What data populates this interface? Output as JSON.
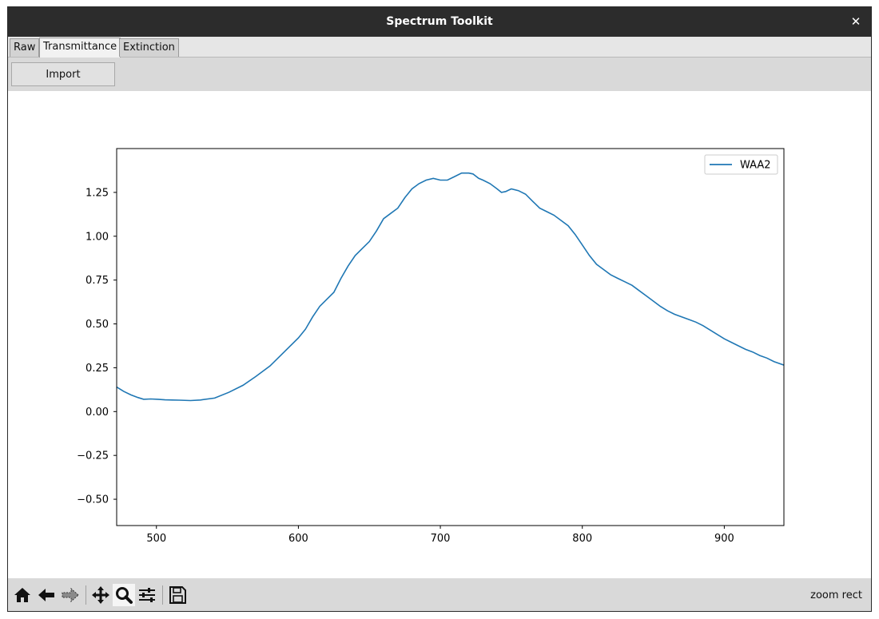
{
  "window": {
    "title": "Spectrum Toolkit"
  },
  "tabs": [
    {
      "label": "Raw",
      "active": false
    },
    {
      "label": "Transmittance",
      "active": true
    },
    {
      "label": "Extinction",
      "active": false
    }
  ],
  "toolbar": {
    "import_label": "Import"
  },
  "nav_toolbar": {
    "icons": [
      "home-icon",
      "back-arrow-icon",
      "forward-arrow-icon",
      "pan-icon",
      "zoom-icon",
      "configure-subplots-icon",
      "save-icon"
    ],
    "active_tool": "zoom-icon"
  },
  "status": {
    "text": "zoom rect"
  },
  "chart_data": {
    "type": "line",
    "title": "",
    "xlabel": "",
    "ylabel": "",
    "xlim": [
      472,
      942
    ],
    "ylim": [
      -0.65,
      1.5
    ],
    "x_ticks": [
      500,
      600,
      700,
      800,
      900
    ],
    "y_ticks": [
      -0.5,
      -0.25,
      0.0,
      0.25,
      0.5,
      0.75,
      1.0,
      1.25
    ],
    "x_tick_labels": [
      "500",
      "600",
      "700",
      "800",
      "900"
    ],
    "y_tick_labels": [
      "−0.50",
      "−0.25",
      "0.00",
      "0.25",
      "0.50",
      "0.75",
      "1.00",
      "1.25"
    ],
    "grid": false,
    "legend": {
      "placement": "top-right",
      "entries": [
        "WAA2"
      ]
    },
    "series": [
      {
        "name": "WAA2",
        "color": "#1f77b4",
        "x": [
          472,
          477,
          482,
          487,
          491,
          496,
          501,
          506,
          511,
          516,
          524,
          531,
          541,
          551,
          561,
          570,
          580,
          590,
          600,
          605,
          610,
          615,
          620,
          625,
          630,
          635,
          640,
          645,
          650,
          655,
          660,
          665,
          670,
          675,
          680,
          685,
          690,
          695,
          700,
          705,
          710,
          715,
          720,
          723,
          727,
          730,
          735,
          740,
          743,
          746,
          750,
          755,
          760,
          765,
          770,
          775,
          780,
          785,
          790,
          795,
          800,
          805,
          810,
          815,
          820,
          825,
          830,
          835,
          840,
          845,
          850,
          855,
          860,
          865,
          870,
          875,
          880,
          885,
          890,
          895,
          900,
          905,
          910,
          915,
          920,
          925,
          930,
          935,
          942
        ],
        "y": [
          0.14,
          0.115,
          0.095,
          0.08,
          0.07,
          0.072,
          0.07,
          0.067,
          0.066,
          0.065,
          0.063,
          0.066,
          0.077,
          0.11,
          0.15,
          0.2,
          0.26,
          0.34,
          0.42,
          0.47,
          0.54,
          0.6,
          0.64,
          0.68,
          0.76,
          0.83,
          0.89,
          0.93,
          0.97,
          1.03,
          1.1,
          1.13,
          1.16,
          1.22,
          1.27,
          1.3,
          1.32,
          1.33,
          1.32,
          1.32,
          1.34,
          1.36,
          1.36,
          1.355,
          1.33,
          1.32,
          1.3,
          1.27,
          1.25,
          1.255,
          1.27,
          1.26,
          1.24,
          1.2,
          1.16,
          1.14,
          1.12,
          1.09,
          1.06,
          1.01,
          0.95,
          0.89,
          0.84,
          0.81,
          0.78,
          0.76,
          0.74,
          0.72,
          0.69,
          0.66,
          0.63,
          0.6,
          0.575,
          0.555,
          0.54,
          0.525,
          0.51,
          0.49,
          0.465,
          0.44,
          0.415,
          0.395,
          0.375,
          0.355,
          0.34,
          0.32,
          0.305,
          0.285,
          0.265
        ]
      }
    ]
  }
}
